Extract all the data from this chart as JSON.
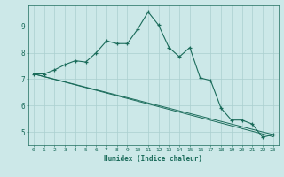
{
  "xlabel": "Humidex (Indice chaleur)",
  "bg_color": "#cce8e8",
  "grid_color": "#aacfcf",
  "line_color": "#1a6b5a",
  "xlim": [
    -0.5,
    23.5
  ],
  "ylim": [
    4.5,
    9.8
  ],
  "yticks": [
    5,
    6,
    7,
    8,
    9
  ],
  "xticks": [
    0,
    1,
    2,
    3,
    4,
    5,
    6,
    7,
    8,
    9,
    10,
    11,
    12,
    13,
    14,
    15,
    16,
    17,
    18,
    19,
    20,
    21,
    22,
    23
  ],
  "line1_x": [
    0,
    1,
    2,
    3,
    4,
    5,
    6,
    7,
    8,
    9,
    10,
    11,
    12,
    13,
    14,
    15,
    16,
    17,
    18,
    19,
    20,
    21,
    22,
    23
  ],
  "line1_y": [
    7.2,
    7.2,
    7.35,
    7.55,
    7.7,
    7.65,
    8.0,
    8.45,
    8.35,
    8.35,
    8.9,
    9.55,
    9.05,
    8.2,
    7.85,
    8.2,
    7.05,
    6.95,
    5.9,
    5.45,
    5.45,
    5.3,
    4.8,
    4.9
  ],
  "line2_x": [
    0,
    23
  ],
  "line2_y": [
    7.2,
    4.9
  ],
  "line3_x": [
    0,
    23
  ],
  "line3_y": [
    7.2,
    4.82
  ]
}
